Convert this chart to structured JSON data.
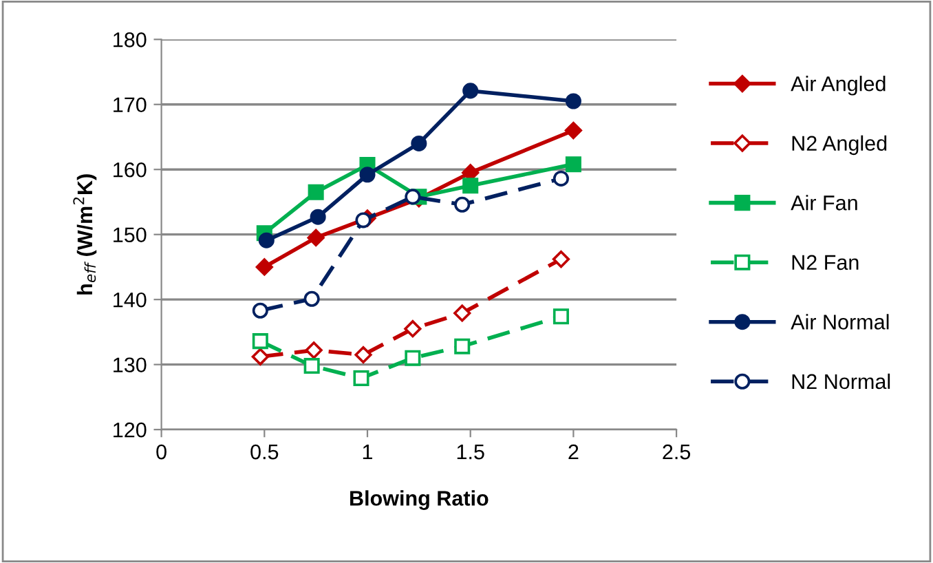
{
  "chart_data": {
    "type": "line",
    "xlabel": "Blowing Ratio",
    "ylabel": "h$_{eff}$ (W/m$^{2}$K)",
    "xlim": [
      0,
      2.5
    ],
    "xticks": [
      0,
      0.5,
      1,
      1.5,
      2,
      2.5
    ],
    "ylim": [
      120,
      180
    ],
    "yticks": [
      120,
      130,
      140,
      150,
      160,
      170,
      180
    ],
    "grid": "y",
    "legend": "right",
    "series": [
      {
        "name": "Air Angled",
        "color": "#c00000",
        "marker": "diamond",
        "line_style": "solid",
        "x": [
          0.5,
          0.75,
          1.0,
          1.25,
          1.5,
          2.0
        ],
        "values": [
          145,
          149.5,
          152.5,
          155.5,
          159.5,
          166
        ]
      },
      {
        "name": "N2 Angled",
        "color": "#c00000",
        "marker": "diamond",
        "line_style": "dashed",
        "x": [
          0.48,
          0.74,
          0.98,
          1.22,
          1.46,
          1.94
        ],
        "values": [
          131.2,
          132.2,
          131.5,
          135.5,
          137.9,
          146.2
        ]
      },
      {
        "name": "Air Fan",
        "color": "#00b050",
        "marker": "square",
        "line_style": "solid",
        "x": [
          0.5,
          0.75,
          1.0,
          1.25,
          1.5,
          2.0
        ],
        "values": [
          150.2,
          156.5,
          160.7,
          155.8,
          157.5,
          160.8
        ]
      },
      {
        "name": "N2 Fan",
        "color": "#00b050",
        "marker": "square",
        "line_style": "dashed",
        "x": [
          0.48,
          0.73,
          0.97,
          1.22,
          1.46,
          1.94
        ],
        "values": [
          133.6,
          129.8,
          127.9,
          131,
          132.8,
          137.4
        ]
      },
      {
        "name": "Air Normal",
        "color": "#002060",
        "marker": "circle",
        "line_style": "solid",
        "x": [
          0.51,
          0.76,
          1.0,
          1.25,
          1.5,
          2.0
        ],
        "values": [
          149.1,
          152.7,
          159.2,
          164,
          172.1,
          170.5
        ]
      },
      {
        "name": "N2 Normal",
        "color": "#002060",
        "marker": "circle",
        "line_style": "dashed",
        "x": [
          0.48,
          0.73,
          0.98,
          1.22,
          1.46,
          1.94
        ],
        "values": [
          138.3,
          140.1,
          152.2,
          155.8,
          154.6,
          158.6
        ]
      }
    ]
  }
}
